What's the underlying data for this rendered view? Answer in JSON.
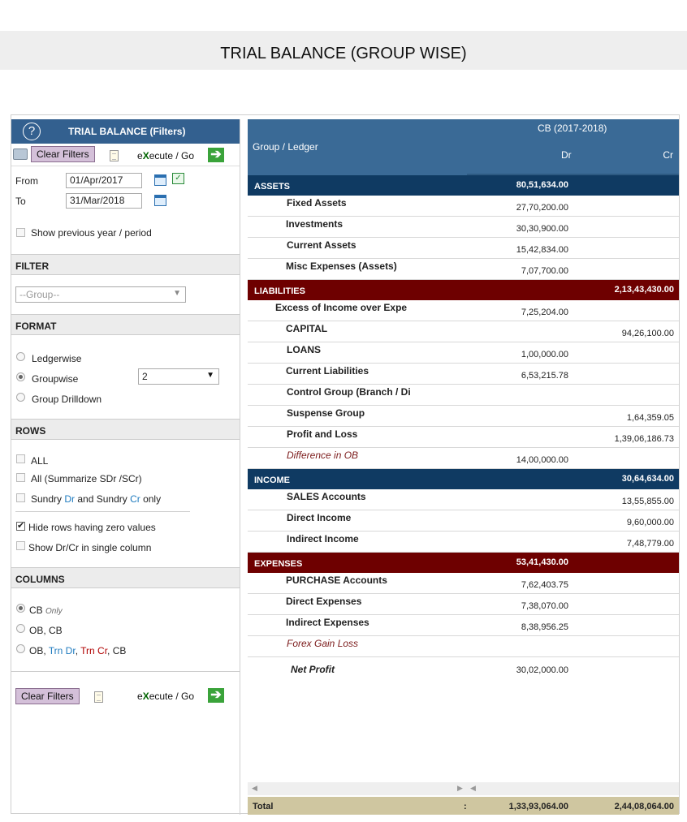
{
  "page_title": "TRIAL BALANCE (GROUP WISE)",
  "filters": {
    "header": "TRIAL BALANCE (Filters)",
    "help": "?",
    "clear_filters": "Clear Filters",
    "execute_prefix": "e",
    "execute_x": "X",
    "execute_rest": "ecute / Go",
    "from_label": "From",
    "from_value": "01/Apr/2017",
    "to_label": "To",
    "to_value": "31/Mar/2018",
    "show_prev": "Show previous year / period",
    "filter_section": "FILTER",
    "group_placeholder": "--Group--",
    "format_section": "FORMAT",
    "format_options": [
      "Ledgerwise",
      "Groupwise",
      "Group Drilldown"
    ],
    "format_selected": "Groupwise",
    "level_value": "2",
    "rows_section": "ROWS",
    "rows_all": "ALL",
    "rows_summarize": "All (Summarize SDr /SCr)",
    "rows_sundry_a": "Sundry ",
    "rows_sundry_dr": "Dr",
    "rows_sundry_b": " and Sundry ",
    "rows_sundry_cr": "Cr",
    "rows_sundry_c": " only",
    "hide_zero": "Hide rows having zero values",
    "single_column": "Show Dr/Cr in single column",
    "columns_section": "COLUMNS",
    "col_cb": "CB",
    "col_cb_only": "Only",
    "col_ob_cb": "OB, CB",
    "col_ob": "OB, ",
    "col_trn_dr": "Trn Dr",
    "col_comma": ", ",
    "col_trn_cr": "Trn Cr",
    "col_cb_end": ", CB"
  },
  "table": {
    "group_header": "Group / Ledger",
    "period": "CB (2017-2018)",
    "dr": "Dr",
    "cr": "Cr",
    "sections": [
      {
        "name": "ASSETS",
        "dr": "80,51,634.00",
        "cr": "",
        "color": "#0f3a62",
        "rows": [
          {
            "name": "Fixed Assets",
            "dr": "27,70,200.00",
            "cr": ""
          },
          {
            "name": "Investments",
            "dr": "30,30,900.00",
            "cr": ""
          },
          {
            "name": "Current Assets",
            "dr": "15,42,834.00",
            "cr": ""
          },
          {
            "name": "Misc Expenses (Assets)",
            "dr": "7,07,700.00",
            "cr": ""
          }
        ]
      },
      {
        "name": "LIABILITIES",
        "dr": "",
        "cr": "2,13,43,430.00",
        "color": "#6e0000",
        "rows": [
          {
            "name": "Excess of Income over Expe",
            "dr": "7,25,204.00",
            "cr": ""
          },
          {
            "name": "CAPITAL",
            "dr": "",
            "cr": "94,26,100.00"
          },
          {
            "name": "LOANS",
            "dr": "1,00,000.00",
            "cr": ""
          },
          {
            "name": "Current Liabilities",
            "dr": "6,53,215.78",
            "cr": ""
          },
          {
            "name": "Control Group (Branch / Di",
            "dr": "",
            "cr": ""
          },
          {
            "name": "Suspense Group",
            "dr": "",
            "cr": "1,64,359.05"
          },
          {
            "name": "Profit and Loss",
            "dr": "",
            "cr": "1,39,06,186.73"
          },
          {
            "name": "Difference in OB",
            "dr": "14,00,000.00",
            "cr": ""
          }
        ]
      },
      {
        "name": "INCOME",
        "dr": "",
        "cr": "30,64,634.00",
        "color": "#0f3a62",
        "rows": [
          {
            "name": "SALES Accounts",
            "dr": "",
            "cr": "13,55,855.00"
          },
          {
            "name": "Direct Income",
            "dr": "",
            "cr": "9,60,000.00"
          },
          {
            "name": "Indirect Income",
            "dr": "",
            "cr": "7,48,779.00"
          }
        ]
      },
      {
        "name": "EXPENSES",
        "dr": "53,41,430.00",
        "cr": "",
        "color": "#6e0000",
        "rows": [
          {
            "name": "PURCHASE Accounts",
            "dr": "7,62,403.75",
            "cr": ""
          },
          {
            "name": "Direct Expenses",
            "dr": "7,38,070.00",
            "cr": ""
          },
          {
            "name": "Indirect Expenses",
            "dr": "8,38,956.25",
            "cr": ""
          },
          {
            "name": "Forex Gain Loss",
            "dr": "",
            "cr": ""
          }
        ]
      }
    ],
    "net_profit_label": "Net Profit",
    "net_profit_dr": "30,02,000.00",
    "total_label": "Total",
    "total_colon": ":",
    "total_dr": "1,33,93,064.00",
    "total_cr": "2,44,08,064.00"
  }
}
